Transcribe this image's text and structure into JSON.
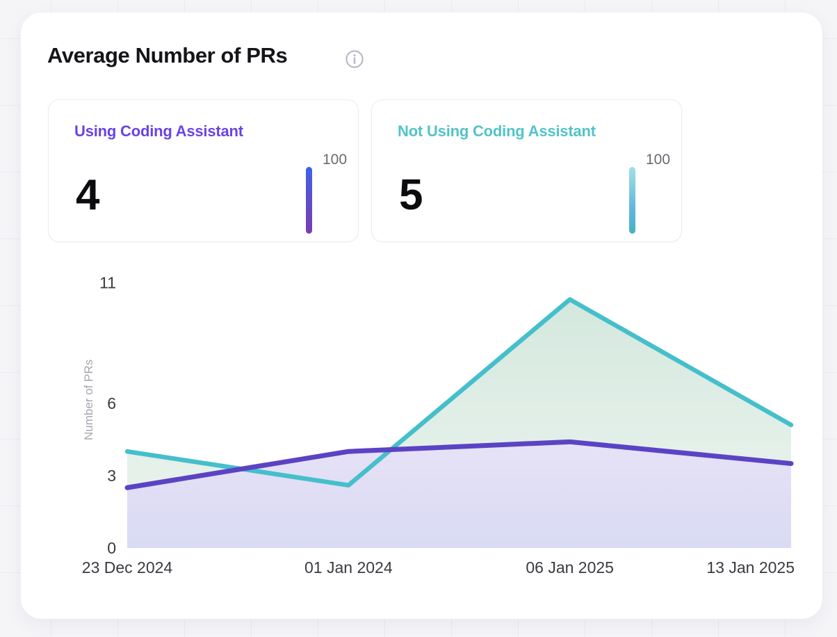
{
  "title": "Average Number of PRs",
  "info_icon": "info-circle-icon",
  "stats": [
    {
      "label": "Using Coding Assistant",
      "value": "4",
      "scale_max": "100",
      "color": "#6943e6",
      "bar_gradient": [
        "#4061ea 0%",
        "#7c3caf 100%"
      ]
    },
    {
      "label": "Not Using Coding Assistant",
      "value": "5",
      "scale_max": "100",
      "color": "#53c3c9",
      "bar_gradient": [
        "#a0e1e5 0%",
        "#62b7da 62%",
        "#45b2c3 100%"
      ]
    }
  ],
  "chart_data": {
    "type": "area",
    "title": "Average Number of PRs",
    "x": [
      "23 Dec 2024",
      "01 Jan 2024",
      "06 Jan 2025",
      "13 Jan 2025"
    ],
    "xlabel": "",
    "ylabel": "Number of PRs",
    "yticks": [
      0,
      3,
      6,
      11
    ],
    "ylim": [
      0,
      11.5
    ],
    "grid": false,
    "legend_position": "none",
    "series": [
      {
        "name": "Using Coding Assistant",
        "color": "#5b43c4",
        "fill_top": "#e7e2f6",
        "fill_bottom": "#d9daf4",
        "values": [
          2.5,
          4.0,
          4.4,
          3.5
        ]
      },
      {
        "name": "Not Using Coding Assistant",
        "color": "#45bfcb",
        "fill_top": "#d4e8de",
        "fill_bottom": "#eef5f0",
        "values": [
          4.0,
          2.6,
          10.3,
          5.1
        ]
      }
    ]
  }
}
